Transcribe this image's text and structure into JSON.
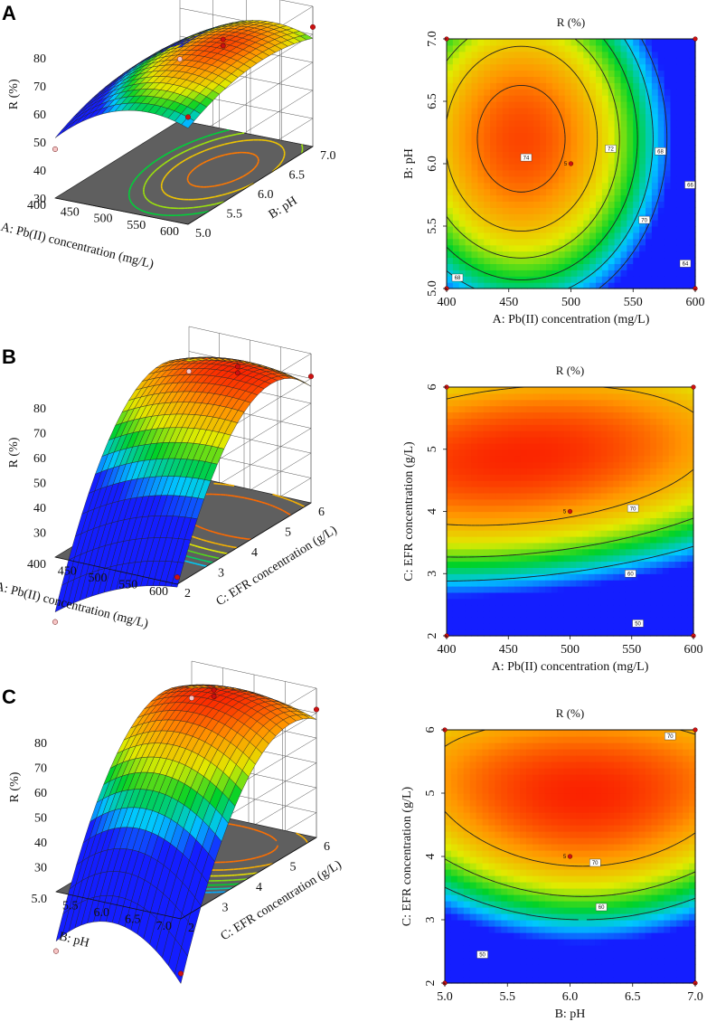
{
  "figure": {
    "panels": [
      "A",
      "B",
      "C"
    ]
  },
  "colors": {
    "floor": "#5f5f5f",
    "design_point": "#cc1111",
    "contour_line": "#222222"
  },
  "chart_data": [
    {
      "type": "surface",
      "panel": "A",
      "zlabel": "R (%)",
      "xlabel": "A: Pb(II) concentration (mg/L)",
      "ylabel": "B: pH",
      "x_range": [
        400,
        600
      ],
      "y_range": [
        5.0,
        7.0
      ],
      "z_range": [
        30,
        80
      ],
      "x_ticks": [
        "400",
        "450",
        "500",
        "550",
        "600"
      ],
      "y_ticks": [
        "5.0",
        "5.5",
        "6.0",
        "6.5",
        "7.0"
      ],
      "z_ticks": [
        "30",
        "40",
        "50",
        "60",
        "70",
        "80"
      ],
      "z_tick_positions": [
        30,
        40,
        50,
        60,
        70,
        80
      ],
      "peak": {
        "x": 460,
        "y": 6.2,
        "z": 75
      }
    },
    {
      "type": "contour",
      "panel": "A",
      "title": "R (%)",
      "xlabel": "A: Pb(II) concentration (mg/L)",
      "ylabel": "B: pH",
      "x_range": [
        400,
        600
      ],
      "y_range": [
        5.0,
        7.0
      ],
      "x_ticks": [
        "400",
        "450",
        "500",
        "550",
        "600"
      ],
      "y_ticks": [
        "5.0",
        "5.5",
        "6.0",
        "6.5",
        "7.0"
      ],
      "contour_levels": [
        "74",
        "72",
        "70",
        "68",
        "66",
        "64"
      ],
      "corner_label": "68",
      "center_label": "5",
      "peak": {
        "x": 460,
        "y": 6.2,
        "z": 75
      }
    },
    {
      "type": "surface",
      "panel": "B",
      "zlabel": "R (%)",
      "xlabel": "A: Pb(II) concentration (mg/L)",
      "ylabel": "C: EFR concentration (g/L)",
      "x_range": [
        400,
        600
      ],
      "y_range": [
        2,
        6
      ],
      "z_range": [
        20,
        80
      ],
      "x_ticks": [
        "400",
        "450",
        "500",
        "550",
        "600"
      ],
      "y_ticks": [
        "2",
        "3",
        "4",
        "5",
        "6"
      ],
      "z_ticks": [
        "30",
        "40",
        "50",
        "60",
        "70",
        "80"
      ],
      "z_tick_positions": [
        30,
        40,
        50,
        60,
        70,
        80
      ],
      "peak": {
        "x": 460,
        "y": 4.9,
        "z": 79
      }
    },
    {
      "type": "contour",
      "panel": "B",
      "title": "R (%)",
      "xlabel": "A: Pb(II) concentration (mg/L)",
      "ylabel": "C: EFR concentration (g/L)",
      "x_range": [
        400,
        600
      ],
      "y_range": [
        2,
        6
      ],
      "x_ticks": [
        "400",
        "450",
        "500",
        "550",
        "600"
      ],
      "y_ticks": [
        "2",
        "3",
        "4",
        "5",
        "6"
      ],
      "contour_levels": [
        "70",
        "60",
        "50"
      ],
      "center_label": "5",
      "peak": {
        "x": 460,
        "y": 4.9,
        "z": 79
      }
    },
    {
      "type": "surface",
      "panel": "C",
      "zlabel": "R (%)",
      "xlabel": "B: pH",
      "ylabel": "C: EFR concentration (g/L)",
      "x_range": [
        5.0,
        7.0
      ],
      "y_range": [
        2,
        6
      ],
      "z_range": [
        20,
        80
      ],
      "x_ticks": [
        "5.0",
        "5.5",
        "6.0",
        "6.5",
        "7.0"
      ],
      "y_ticks": [
        "2",
        "3",
        "4",
        "5",
        "6"
      ],
      "z_ticks": [
        "30",
        "40",
        "50",
        "60",
        "70",
        "80"
      ],
      "z_tick_positions": [
        30,
        40,
        50,
        60,
        70,
        80
      ],
      "peak": {
        "x": 6.1,
        "y": 5.0,
        "z": 80
      }
    },
    {
      "type": "contour",
      "panel": "C",
      "title": "R (%)",
      "xlabel": "B: pH",
      "ylabel": "C: EFR concentration (g/L)",
      "x_range": [
        5.0,
        7.0
      ],
      "y_range": [
        2,
        6
      ],
      "x_ticks": [
        "5.0",
        "5.5",
        "6.0",
        "6.5",
        "7.0"
      ],
      "y_ticks": [
        "2",
        "3",
        "4",
        "5",
        "6"
      ],
      "contour_levels": [
        "70",
        "70",
        "60",
        "50"
      ],
      "center_label": "5",
      "peak": {
        "x": 6.1,
        "y": 5.0,
        "z": 80
      }
    }
  ]
}
